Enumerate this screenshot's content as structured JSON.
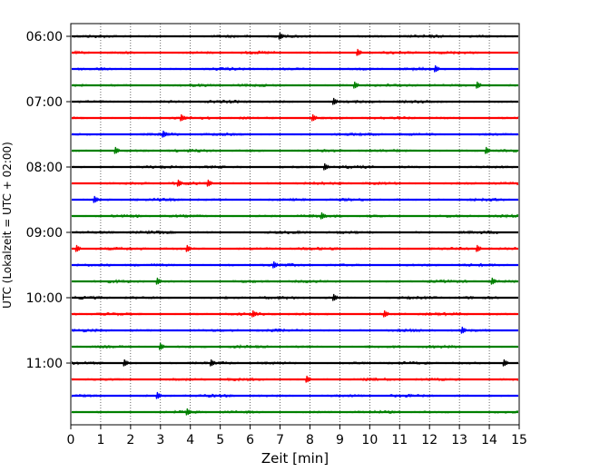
{
  "chart_data": {
    "type": "line",
    "title": "",
    "xlabel": "Zeit  [min]",
    "ylabel": "UTC (Lokalzeit = UTC + 02:00)",
    "xlim": [
      0,
      15
    ],
    "x_ticks": [
      0,
      1,
      2,
      3,
      4,
      5,
      6,
      7,
      8,
      9,
      10,
      11,
      12,
      13,
      14,
      15
    ],
    "x_tick_labels": [
      "0",
      "1",
      "2",
      "3",
      "4",
      "5",
      "6",
      "7",
      "8",
      "9",
      "10",
      "11",
      "12",
      "13",
      "14",
      "15"
    ],
    "y_tick_labels": [
      "06:00",
      "07:00",
      "08:00",
      "09:00",
      "10:00",
      "11:00"
    ],
    "grid": "vertical dotted",
    "trace_interval_minutes": 15,
    "trace_colors": [
      "#000000",
      "#ff0000",
      "#0000ff",
      "#008000"
    ],
    "traces": [
      {
        "start": "06:00",
        "color": "#000000",
        "events": [
          7.0
        ]
      },
      {
        "start": "06:15",
        "color": "#ff0000",
        "events": [
          9.6
        ]
      },
      {
        "start": "06:30",
        "color": "#0000ff",
        "events": [
          12.2
        ]
      },
      {
        "start": "06:45",
        "color": "#008000",
        "events": [
          9.5,
          13.6
        ]
      },
      {
        "start": "07:00",
        "color": "#000000",
        "events": [
          8.8
        ]
      },
      {
        "start": "07:15",
        "color": "#ff0000",
        "events": [
          3.7,
          8.1
        ]
      },
      {
        "start": "07:30",
        "color": "#0000ff",
        "events": [
          3.1
        ]
      },
      {
        "start": "07:45",
        "color": "#008000",
        "events": [
          1.5,
          13.9
        ]
      },
      {
        "start": "08:00",
        "color": "#000000",
        "events": [
          8.5
        ]
      },
      {
        "start": "08:15",
        "color": "#ff0000",
        "events": [
          3.6,
          4.6
        ]
      },
      {
        "start": "08:30",
        "color": "#0000ff",
        "events": [
          0.8
        ]
      },
      {
        "start": "08:45",
        "color": "#008000",
        "events": [
          8.4
        ]
      },
      {
        "start": "09:00",
        "color": "#000000",
        "events": []
      },
      {
        "start": "09:15",
        "color": "#ff0000",
        "events": [
          0.2,
          3.9,
          13.6
        ]
      },
      {
        "start": "09:30",
        "color": "#0000ff",
        "events": [
          6.8
        ]
      },
      {
        "start": "09:45",
        "color": "#008000",
        "events": [
          2.9,
          14.1
        ]
      },
      {
        "start": "10:00",
        "color": "#000000",
        "events": [
          8.8
        ]
      },
      {
        "start": "10:15",
        "color": "#ff0000",
        "events": [
          6.1,
          10.5
        ]
      },
      {
        "start": "10:30",
        "color": "#0000ff",
        "events": [
          13.1
        ]
      },
      {
        "start": "10:45",
        "color": "#008000",
        "events": [
          3.0
        ]
      },
      {
        "start": "11:00",
        "color": "#000000",
        "events": [
          1.8,
          4.7,
          14.5
        ]
      },
      {
        "start": "11:15",
        "color": "#ff0000",
        "events": [
          7.9
        ]
      },
      {
        "start": "11:30",
        "color": "#0000ff",
        "events": [
          2.9
        ]
      },
      {
        "start": "11:45",
        "color": "#008000",
        "events": [
          3.9
        ]
      }
    ]
  }
}
